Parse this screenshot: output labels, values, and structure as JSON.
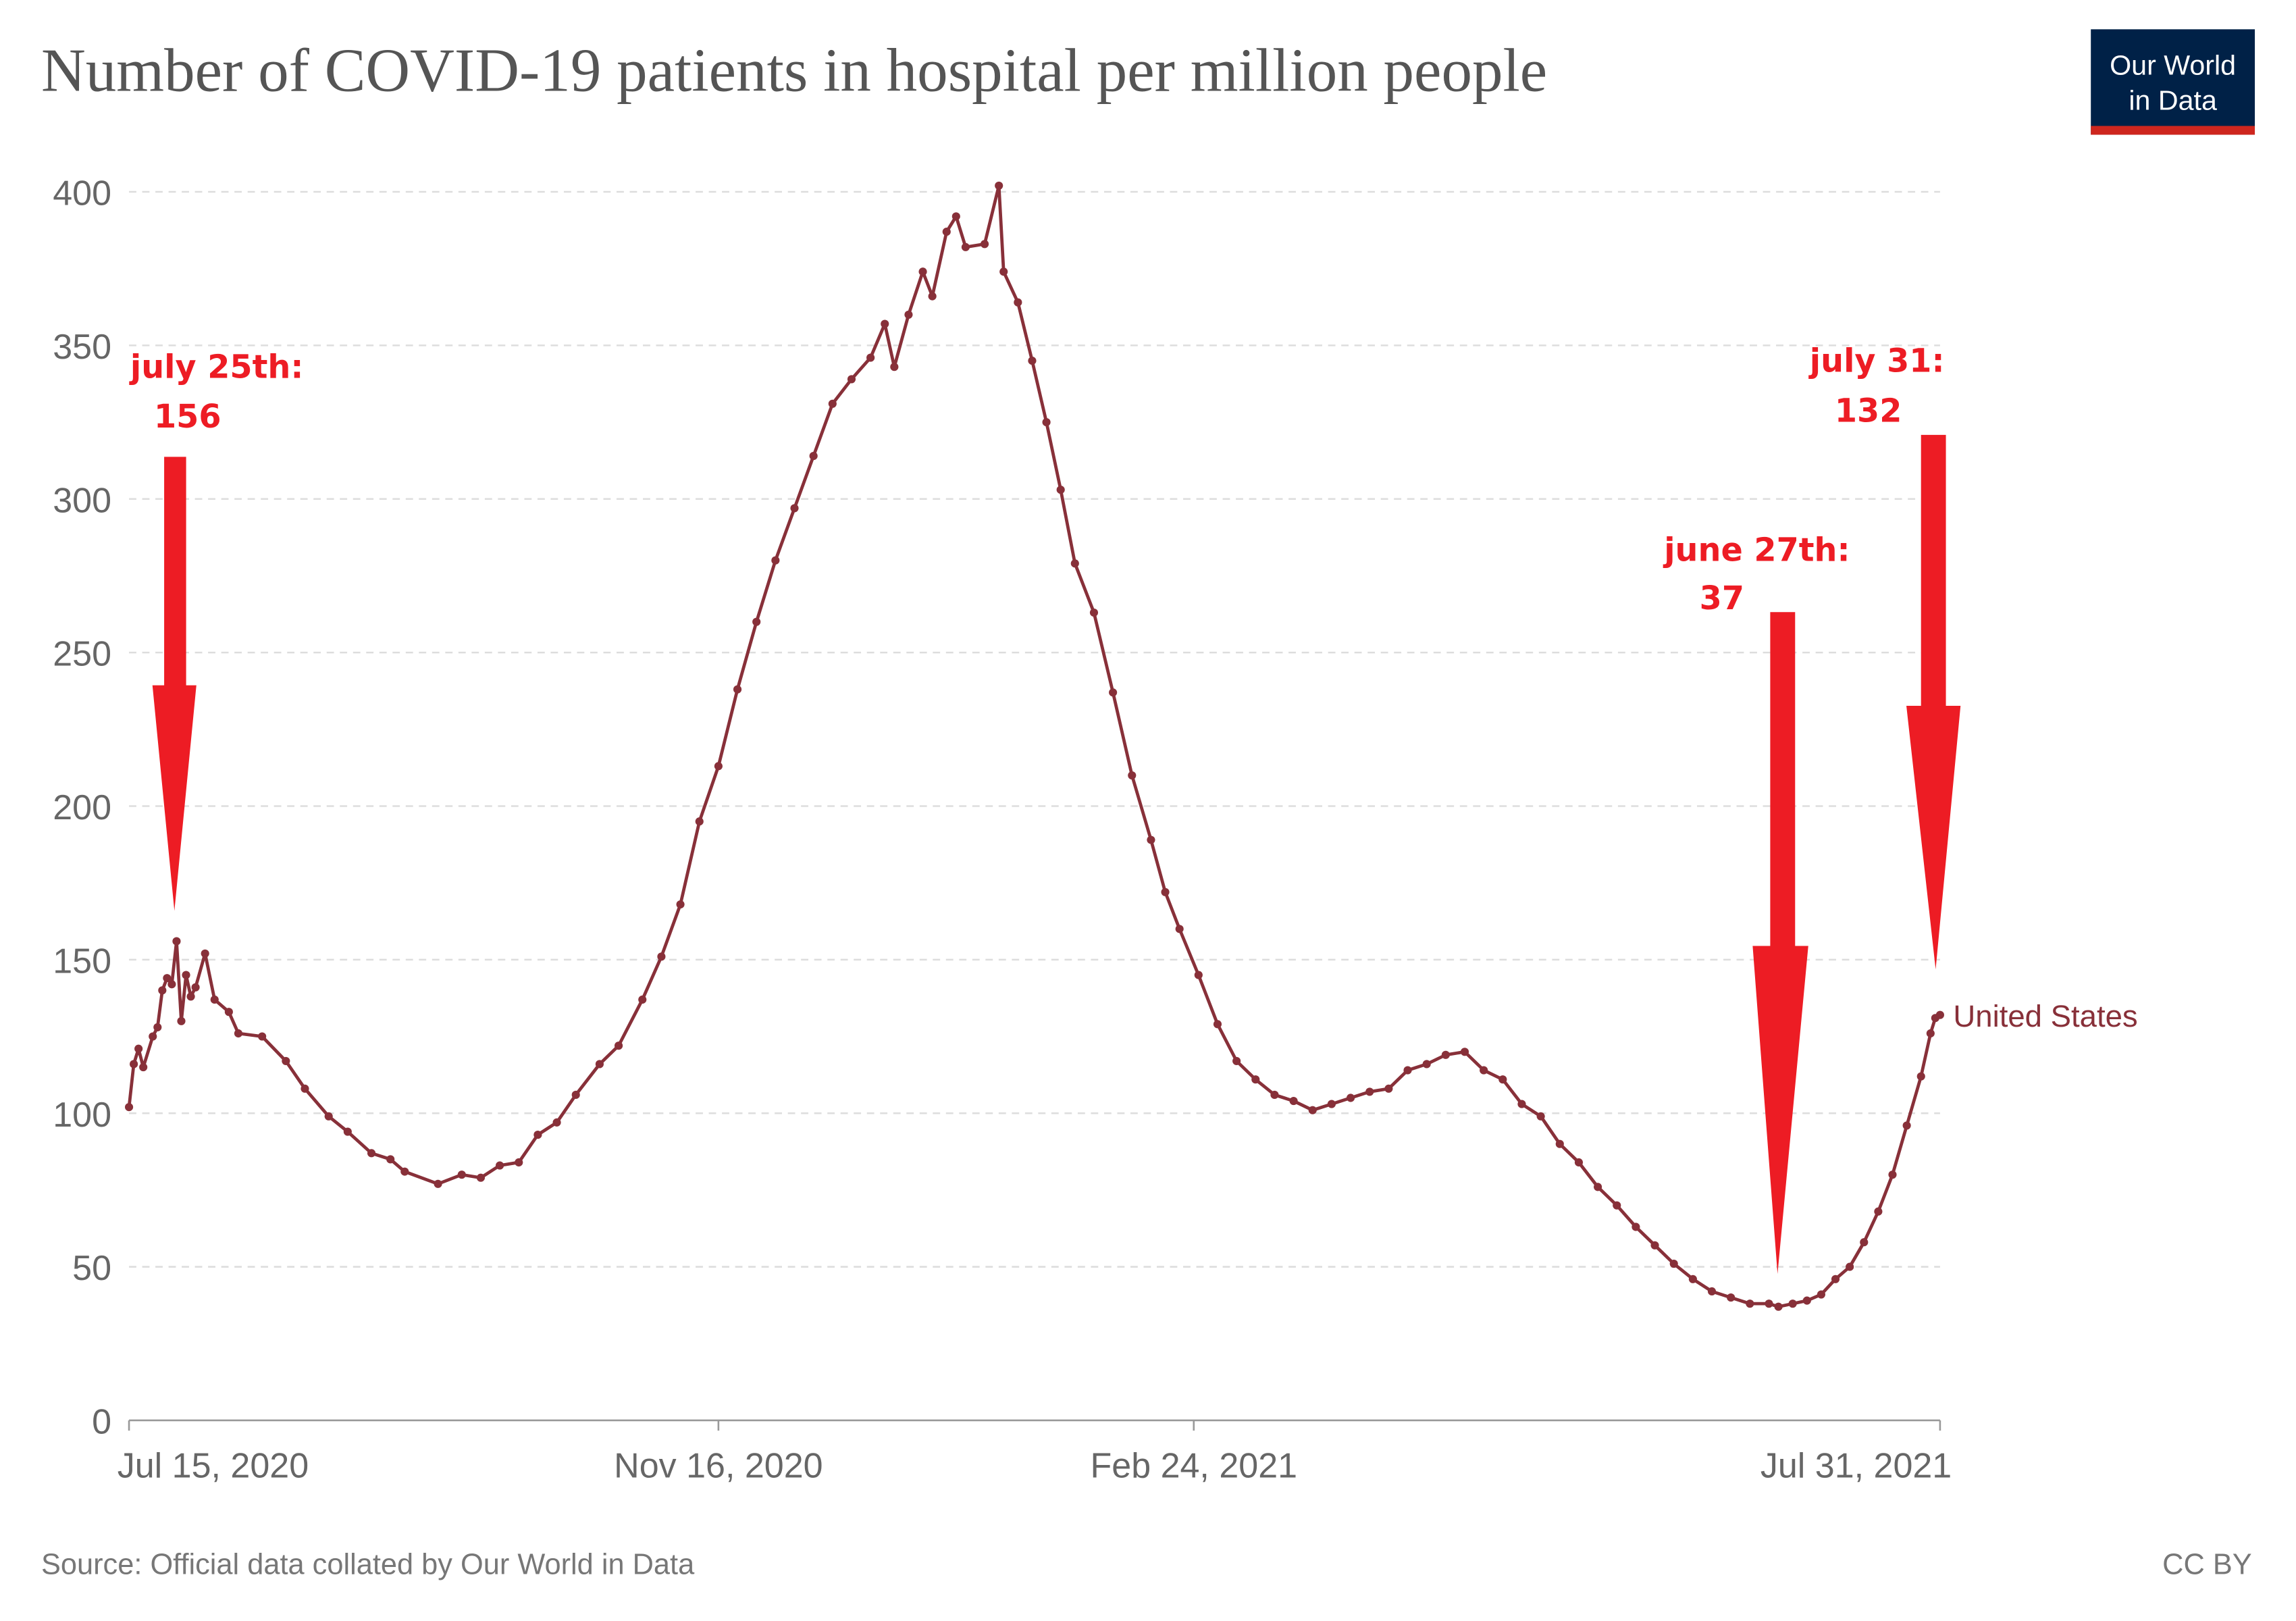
{
  "chart_data": {
    "type": "line",
    "title": "Number of COVID-19 patients in hospital per million people",
    "source": "Source: Official data collated by Our World in Data",
    "license": "CC BY",
    "logo": [
      "Our World",
      "in Data"
    ],
    "x": [
      "2020-07-15",
      "2020-07-16",
      "2020-07-17",
      "2020-07-18",
      "2020-07-20",
      "2020-07-21",
      "2020-07-22",
      "2020-07-23",
      "2020-07-24",
      "2020-07-25",
      "2020-07-26",
      "2020-07-27",
      "2020-07-28",
      "2020-07-29",
      "2020-07-31",
      "2020-08-02",
      "2020-08-05",
      "2020-08-07",
      "2020-08-12",
      "2020-08-17",
      "2020-08-21",
      "2020-08-26",
      "2020-08-30",
      "2020-09-04",
      "2020-09-08",
      "2020-09-11",
      "2020-09-18",
      "2020-09-23",
      "2020-09-27",
      "2020-10-01",
      "2020-10-05",
      "2020-10-09",
      "2020-10-13",
      "2020-10-17",
      "2020-10-22",
      "2020-10-26",
      "2020-10-31",
      "2020-11-04",
      "2020-11-08",
      "2020-11-12",
      "2020-11-16",
      "2020-11-20",
      "2020-11-24",
      "2020-11-28",
      "2020-12-02",
      "2020-12-06",
      "2020-12-10",
      "2020-12-14",
      "2020-12-18",
      "2020-12-21",
      "2020-12-23",
      "2020-12-26",
      "2020-12-29",
      "2020-12-31",
      "2021-01-03",
      "2021-01-05",
      "2021-01-07",
      "2021-01-11",
      "2021-01-14",
      "2021-01-15",
      "2021-01-18",
      "2021-01-21",
      "2021-01-24",
      "2021-01-27",
      "2021-01-30",
      "2021-02-03",
      "2021-02-07",
      "2021-02-11",
      "2021-02-15",
      "2021-02-18",
      "2021-02-21",
      "2021-02-25",
      "2021-03-01",
      "2021-03-05",
      "2021-03-09",
      "2021-03-13",
      "2021-03-17",
      "2021-03-21",
      "2021-03-25",
      "2021-03-29",
      "2021-04-02",
      "2021-04-06",
      "2021-04-10",
      "2021-04-14",
      "2021-04-18",
      "2021-04-22",
      "2021-04-26",
      "2021-04-30",
      "2021-05-04",
      "2021-05-08",
      "2021-05-12",
      "2021-05-16",
      "2021-05-20",
      "2021-05-24",
      "2021-05-28",
      "2021-06-01",
      "2021-06-05",
      "2021-06-09",
      "2021-06-13",
      "2021-06-17",
      "2021-06-21",
      "2021-06-25",
      "2021-06-27",
      "2021-06-30",
      "2021-07-03",
      "2021-07-06",
      "2021-07-09",
      "2021-07-12",
      "2021-07-15",
      "2021-07-18",
      "2021-07-21",
      "2021-07-24",
      "2021-07-27",
      "2021-07-29",
      "2021-07-30",
      "2021-07-31"
    ],
    "series": [
      {
        "name": "United States",
        "color": "#883039",
        "values": [
          102,
          116,
          121,
          115,
          125,
          128,
          140,
          144,
          142,
          156,
          130,
          145,
          138,
          141,
          152,
          137,
          133,
          126,
          125,
          117,
          108,
          99,
          94,
          87,
          85,
          81,
          77,
          80,
          79,
          83,
          84,
          93,
          97,
          106,
          116,
          122,
          137,
          151,
          168,
          195,
          213,
          238,
          260,
          280,
          297,
          314,
          331,
          339,
          346,
          357,
          343,
          360,
          374,
          366,
          387,
          392,
          382,
          383,
          402,
          374,
          364,
          345,
          325,
          303,
          279,
          263,
          237,
          210,
          189,
          172,
          160,
          145,
          129,
          117,
          111,
          106,
          104,
          101,
          103,
          105,
          107,
          108,
          114,
          116,
          119,
          120,
          114,
          111,
          103,
          99,
          90,
          84,
          76,
          70,
          63,
          57,
          51,
          46,
          42,
          40,
          38,
          38,
          37,
          38,
          39,
          41,
          46,
          50,
          58,
          68,
          80,
          96,
          112,
          126,
          131,
          132
        ]
      }
    ],
    "xlim": [
      "2020-07-15",
      "2021-07-31"
    ],
    "xticks": [
      {
        "value": "2020-07-15",
        "label": "Jul 15, 2020"
      },
      {
        "value": "2020-11-16",
        "label": "Nov 16, 2020"
      },
      {
        "value": "2021-02-24",
        "label": "Feb 24, 2021"
      },
      {
        "value": "2021-07-31",
        "label": "Jul 31, 2021"
      }
    ],
    "ylim": [
      0,
      400
    ],
    "yticks": [
      0,
      50,
      100,
      150,
      200,
      250,
      300,
      350,
      400
    ],
    "grid": true,
    "annotations": [
      {
        "lines": [
          "july 25th:",
          "156"
        ],
        "color": "#ed1c24"
      },
      {
        "lines": [
          "june 27th:",
          "37"
        ],
        "color": "#ed1c24"
      },
      {
        "lines": [
          "july 31:",
          "132"
        ],
        "color": "#ed1c24"
      }
    ]
  }
}
